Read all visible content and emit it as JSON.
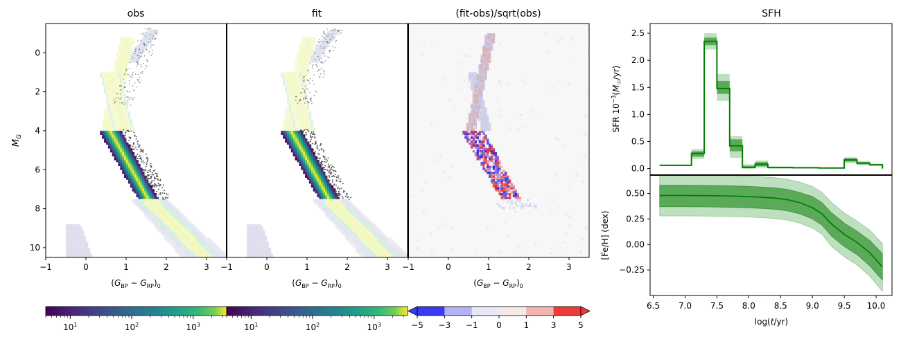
{
  "colors": {
    "sfh_line": "#008000",
    "sfh_band_inner": "#5aaa5a",
    "sfh_band_outer": "#bfe0bf",
    "div_neg": "#3333ee",
    "div_mid": "#f7f7f7",
    "div_pos": "#ee3333"
  },
  "chart_data": [
    {
      "id": "obs",
      "type": "heatmap",
      "title": "obs",
      "xlabel": "(G_BP − G_RP)_0",
      "ylabel": "M_G",
      "xlim": [
        -1,
        3.5
      ],
      "ylim": [
        10.5,
        -1.5
      ],
      "xticks": [
        "−1",
        "0",
        "1",
        "2",
        "3"
      ],
      "yticks": [
        "0",
        "2",
        "4",
        "6",
        "8",
        "10"
      ]
    },
    {
      "id": "fit",
      "type": "heatmap",
      "title": "fit",
      "xlabel": "(G_BP − G_RP)_0",
      "xlim": [
        -1,
        3.5
      ],
      "ylim": [
        10.5,
        -1.5
      ],
      "xticks": [
        "−1",
        "0",
        "1",
        "2",
        "3"
      ]
    },
    {
      "id": "resid",
      "type": "heatmap",
      "title": "(fit-obs)/sqrt(obs)",
      "xlabel": "(G_BP − G_RP)_0",
      "xlim": [
        -1,
        3.5
      ],
      "ylim": [
        10.5,
        -1.5
      ],
      "xticks": [
        "−1",
        "0",
        "1",
        "2",
        "3"
      ]
    },
    {
      "id": "sfr",
      "type": "line",
      "title": "SFH",
      "ylabel": "SFR 10⁻³(M☉/yr)",
      "xlim": [
        6.45,
        10.25
      ],
      "ylim": [
        -0.12,
        2.68
      ],
      "yticks": [
        0.0,
        0.5,
        1.0,
        1.5,
        2.0,
        2.5
      ],
      "ytick_labels": [
        "0.0",
        "0.5",
        "1.0",
        "1.5",
        "2.0",
        "2.5"
      ],
      "bins": [
        {
          "x0": 6.6,
          "x1": 7.1,
          "y": 0.06,
          "lo1": 0.05,
          "hi1": 0.07,
          "lo2": 0.05,
          "hi2": 0.07
        },
        {
          "x0": 7.1,
          "x1": 7.3,
          "y": 0.28,
          "lo1": 0.22,
          "hi1": 0.32,
          "lo2": 0.18,
          "hi2": 0.36
        },
        {
          "x0": 7.3,
          "x1": 7.5,
          "y": 2.35,
          "lo1": 2.28,
          "hi1": 2.42,
          "lo2": 2.2,
          "hi2": 2.5
        },
        {
          "x0": 7.5,
          "x1": 7.7,
          "y": 1.48,
          "lo1": 1.38,
          "hi1": 1.62,
          "lo2": 1.25,
          "hi2": 1.75
        },
        {
          "x0": 7.7,
          "x1": 7.9,
          "y": 0.42,
          "lo1": 0.32,
          "hi1": 0.54,
          "lo2": 0.2,
          "hi2": 0.6
        },
        {
          "x0": 7.9,
          "x1": 8.1,
          "y": 0.02,
          "lo1": 0.01,
          "hi1": 0.05,
          "lo2": 0.0,
          "hi2": 0.08
        },
        {
          "x0": 8.1,
          "x1": 8.3,
          "y": 0.08,
          "lo1": 0.04,
          "hi1": 0.12,
          "lo2": 0.02,
          "hi2": 0.15
        },
        {
          "x0": 8.3,
          "x1": 8.7,
          "y": 0.02,
          "lo1": 0.01,
          "hi1": 0.03,
          "lo2": 0.0,
          "hi2": 0.04
        },
        {
          "x0": 8.7,
          "x1": 9.1,
          "y": 0.015,
          "lo1": 0.01,
          "hi1": 0.02,
          "lo2": 0.0,
          "hi2": 0.03
        },
        {
          "x0": 9.1,
          "x1": 9.5,
          "y": 0.01,
          "lo1": 0.005,
          "hi1": 0.015,
          "lo2": 0.0,
          "hi2": 0.02
        },
        {
          "x0": 9.5,
          "x1": 9.7,
          "y": 0.16,
          "lo1": 0.13,
          "hi1": 0.19,
          "lo2": 0.1,
          "hi2": 0.21
        },
        {
          "x0": 9.7,
          "x1": 9.9,
          "y": 0.1,
          "lo1": 0.08,
          "hi1": 0.12,
          "lo2": 0.06,
          "hi2": 0.14
        },
        {
          "x0": 9.9,
          "x1": 10.1,
          "y": 0.07,
          "lo1": 0.06,
          "hi1": 0.08,
          "lo2": 0.05,
          "hi2": 0.09
        }
      ]
    },
    {
      "id": "feh",
      "type": "line",
      "ylabel": "[Fe/H] (dex)",
      "xlabel": "log(t/yr)",
      "xlim": [
        6.45,
        10.25
      ],
      "ylim": [
        -0.5,
        0.68
      ],
      "yticks": [
        -0.25,
        0.0,
        0.25,
        0.5
      ],
      "ytick_labels": [
        "−0.25",
        "0.00",
        "0.25",
        "0.50"
      ],
      "xticks": [
        6.5,
        7.0,
        7.5,
        8.0,
        8.5,
        9.0,
        9.5,
        10.0
      ],
      "xtick_labels": [
        "6.5",
        "7.0",
        "7.5",
        "8.0",
        "8.5",
        "9.0",
        "9.5",
        "10.0"
      ],
      "x": [
        6.6,
        6.8,
        7.0,
        7.2,
        7.4,
        7.6,
        7.8,
        8.0,
        8.2,
        8.4,
        8.6,
        8.8,
        9.0,
        9.15,
        9.3,
        9.5,
        9.7,
        9.9,
        10.1
      ],
      "y": [
        0.48,
        0.48,
        0.48,
        0.479,
        0.478,
        0.476,
        0.473,
        0.469,
        0.463,
        0.455,
        0.44,
        0.41,
        0.36,
        0.3,
        0.2,
        0.1,
        0.02,
        -0.08,
        -0.22
      ],
      "lo1": [
        0.37,
        0.37,
        0.37,
        0.369,
        0.368,
        0.366,
        0.363,
        0.359,
        0.353,
        0.345,
        0.33,
        0.3,
        0.25,
        0.19,
        0.08,
        -0.02,
        -0.1,
        -0.21,
        -0.35
      ],
      "hi1": [
        0.58,
        0.58,
        0.58,
        0.579,
        0.578,
        0.576,
        0.573,
        0.569,
        0.563,
        0.555,
        0.54,
        0.51,
        0.47,
        0.41,
        0.31,
        0.21,
        0.13,
        0.04,
        -0.09
      ],
      "lo2": [
        0.28,
        0.28,
        0.28,
        0.279,
        0.278,
        0.276,
        0.273,
        0.269,
        0.263,
        0.255,
        0.24,
        0.21,
        0.16,
        0.1,
        -0.02,
        -0.12,
        -0.2,
        -0.31,
        -0.46
      ],
      "hi2": [
        0.68,
        0.68,
        0.68,
        0.679,
        0.678,
        0.676,
        0.673,
        0.669,
        0.663,
        0.655,
        0.64,
        0.61,
        0.57,
        0.51,
        0.41,
        0.31,
        0.23,
        0.14,
        0.01
      ]
    },
    {
      "id": "cbar_log1",
      "type": "colorbar",
      "tick_labels": [
        "10",
        "10",
        "10"
      ],
      "tick_exponents": [
        "1",
        "2",
        "3"
      ]
    },
    {
      "id": "cbar_log2",
      "type": "colorbar",
      "tick_labels": [
        "10",
        "10",
        "10"
      ],
      "tick_exponents": [
        "1",
        "2",
        "3"
      ]
    },
    {
      "id": "cbar_div",
      "type": "colorbar",
      "boundaries": [
        -5,
        -3,
        -1,
        0,
        1,
        3,
        5
      ],
      "tick_labels": [
        "−5",
        "−3",
        "−1",
        "0",
        "1",
        "3",
        "5"
      ],
      "segment_colors": [
        "#3a3aee",
        "#b3b3f2",
        "#e8e8f7",
        "#f7e8e8",
        "#f2b3b3",
        "#ee3a3a"
      ]
    }
  ]
}
